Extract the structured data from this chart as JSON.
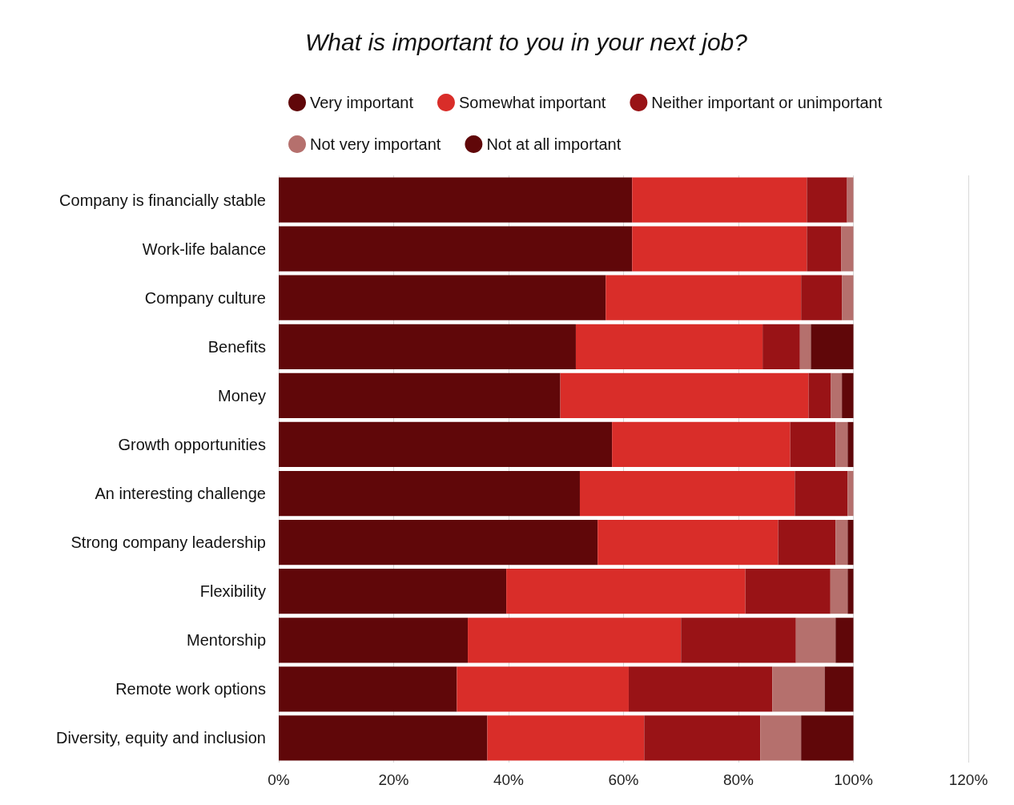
{
  "chart_data": {
    "type": "bar",
    "orientation": "horizontal",
    "stacked": true,
    "title": "What is important to you in your next job?",
    "categories": [
      "Company is financially stable",
      "Work-life balance",
      "Company culture",
      "Benefits",
      "Money",
      "Growth opportunities",
      "An interesting challenge",
      "Strong company leadership",
      "Flexibility",
      "Mentorship",
      "Remote work options",
      "Diversity, equity and inclusion"
    ],
    "series": [
      {
        "name": "Very important",
        "color": "#600709",
        "values": [
          61.5,
          61.5,
          56.9,
          51.7,
          49.0,
          58.0,
          52.4,
          55.5,
          39.6,
          32.9,
          31.0,
          36.3
        ]
      },
      {
        "name": "Somewhat important",
        "color": "#d92d29",
        "values": [
          30.4,
          30.4,
          34.0,
          32.5,
          43.2,
          31.0,
          37.4,
          31.4,
          41.6,
          37.1,
          29.9,
          27.3
        ]
      },
      {
        "name": "Neither important or unimportant",
        "color": "#991316",
        "values": [
          7.0,
          6.0,
          7.1,
          6.5,
          3.9,
          7.9,
          9.2,
          10.0,
          14.8,
          20.0,
          25.0,
          20.2
        ]
      },
      {
        "name": "Not very important",
        "color": "#b5706d",
        "values": [
          1.1,
          2.1,
          2.0,
          1.9,
          1.9,
          2.1,
          1.0,
          2.1,
          3.0,
          6.9,
          9.1,
          7.1
        ]
      },
      {
        "name": "Not at all important",
        "color": "#600709",
        "values": [
          0,
          0,
          0,
          7.4,
          2.0,
          1.0,
          0,
          1.0,
          1.0,
          3.1,
          5.0,
          9.1
        ]
      }
    ],
    "xlim": [
      0,
      120
    ],
    "xticks": [
      {
        "value": 0,
        "label": "0%"
      },
      {
        "value": 20,
        "label": "20%"
      },
      {
        "value": 40,
        "label": "40%"
      },
      {
        "value": 60,
        "label": "60%"
      },
      {
        "value": 80,
        "label": "80%"
      },
      {
        "value": 100,
        "label": "100%"
      },
      {
        "value": 120,
        "label": "120%"
      }
    ],
    "grid": "x",
    "legend": "top"
  }
}
